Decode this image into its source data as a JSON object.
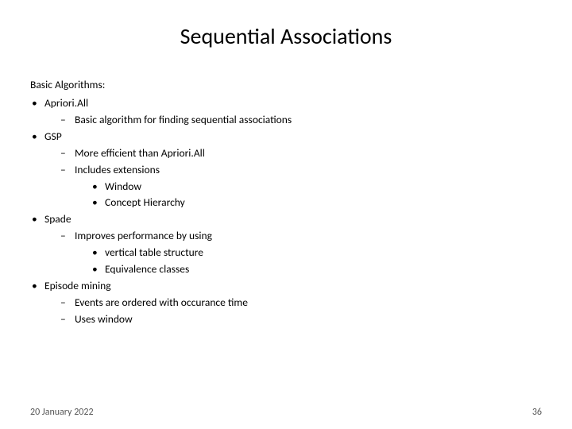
{
  "title": "Sequential Associations",
  "section_heading": "Basic Algorithms:",
  "algs": [
    {
      "name": "Apriori.All",
      "subs": [
        {
          "text": "Basic algorithm for finding sequential associations",
          "items": []
        }
      ]
    },
    {
      "name": "GSP",
      "subs": [
        {
          "text": "More efficient than Apriori.All",
          "items": []
        },
        {
          "text": "Includes extensions",
          "items": [
            "Window",
            "Concept Hierarchy"
          ]
        }
      ]
    },
    {
      "name": "Spade",
      "subs": [
        {
          "text": "Improves performance by using",
          "items": [
            "vertical table structure",
            "Equivalence classes"
          ]
        }
      ]
    },
    {
      "name": "Episode mining",
      "subs": [
        {
          "text": "Events are ordered with occurance time",
          "items": []
        },
        {
          "text": "Uses window",
          "items": []
        }
      ]
    }
  ],
  "footer": {
    "date": "20 January 2022",
    "page": "36"
  },
  "style": {
    "background_color": "#ffffff",
    "text_color": "#000000",
    "footer_color": "#555555",
    "title_fontsize": 28,
    "body_fontsize": 13.5,
    "footer_fontsize": 12,
    "font_family": "Calibri"
  }
}
